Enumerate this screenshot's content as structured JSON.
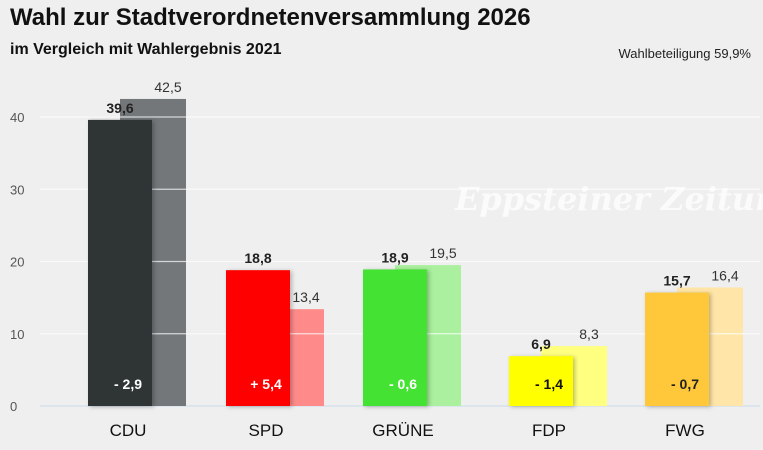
{
  "header": {
    "title": "Wahl zur Stadtverordnetenversammlung 2026",
    "subtitle": "im Vergleich mit Wahlergebnis 2021",
    "turnout": "Wahlbeteiligung 59,9%"
  },
  "watermark": "Eppsteiner Zeitung",
  "chart_data": {
    "type": "bar",
    "title": "Wahl zur Stadtverordnetenversammlung 2026",
    "subtitle": "im Vergleich mit Wahlergebnis 2021",
    "categories": [
      "CDU",
      "SPD",
      "GRÜNE",
      "FDP",
      "FWG"
    ],
    "series": [
      {
        "values": [
          39.6,
          18.8,
          18.9,
          6.9,
          15.7
        ],
        "labels": [
          "39,6",
          "18,8",
          "18,9",
          "6,9",
          "15,7"
        ],
        "colors": [
          "#2f3435",
          "#ff0000",
          "#44e232",
          "#ffff00",
          "#ffc83a"
        ]
      },
      {
        "values": [
          42.5,
          13.4,
          19.5,
          8.3,
          16.4
        ],
        "labels": [
          "42,5",
          "13,4",
          "19,5",
          "8,3",
          "16,4"
        ],
        "colors": [
          "#737779",
          "#ff8a8a",
          "#aaf09e",
          "#ffff80",
          "#ffe6a8"
        ]
      }
    ],
    "differences": [
      "- 2,9",
      "+ 5,4",
      "- 0,6",
      "- 1,4",
      "- 0,7"
    ],
    "difference_colors": [
      "#ffffff",
      "#ffffff",
      "#ffffff",
      "#111111",
      "#222222"
    ],
    "yticks": [
      0,
      10,
      20,
      30,
      40
    ],
    "ylim": [
      0,
      45
    ],
    "grid": true,
    "legend": "none"
  }
}
